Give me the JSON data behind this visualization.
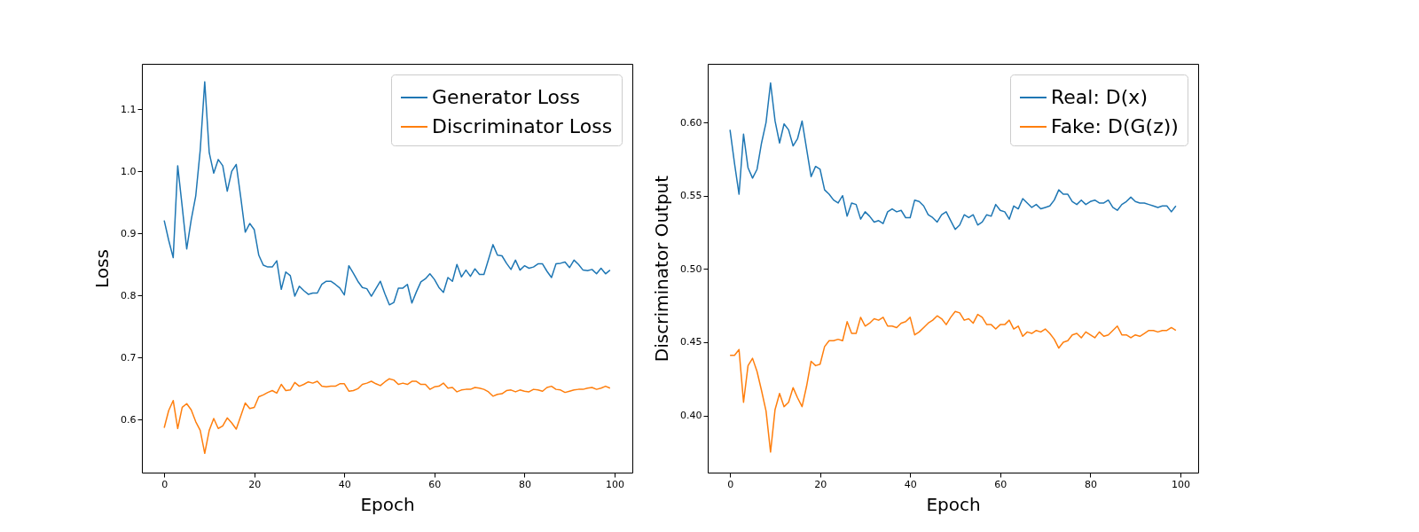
{
  "chart_data": [
    {
      "type": "line",
      "xlabel": "Epoch",
      "ylabel": "Loss",
      "legend": "top right",
      "grid": false,
      "marker": "none",
      "line_style": "solid",
      "xlim": [
        -4.95,
        103.95
      ],
      "xticks": [
        0,
        20,
        40,
        60,
        80,
        100
      ],
      "ylim": [
        0.515,
        1.173
      ],
      "yticks": [
        {
          "value": 0.6,
          "label": "0.6"
        },
        {
          "value": 0.7,
          "label": "0.7"
        },
        {
          "value": 0.8,
          "label": "0.8"
        },
        {
          "value": 0.9,
          "label": "0.9"
        },
        {
          "value": 1.0,
          "label": "1.0"
        },
        {
          "value": 1.1,
          "label": "1.1"
        }
      ],
      "x": [
        0,
        1,
        2,
        3,
        4,
        5,
        6,
        7,
        8,
        9,
        10,
        11,
        12,
        13,
        14,
        15,
        16,
        17,
        18,
        19,
        20,
        21,
        22,
        23,
        24,
        25,
        26,
        27,
        28,
        29,
        30,
        31,
        32,
        33,
        34,
        35,
        36,
        37,
        38,
        39,
        40,
        41,
        42,
        43,
        44,
        45,
        46,
        47,
        48,
        49,
        50,
        51,
        52,
        53,
        54,
        55,
        56,
        57,
        58,
        59,
        60,
        61,
        62,
        63,
        64,
        65,
        66,
        67,
        68,
        69,
        70,
        71,
        72,
        73,
        74,
        75,
        76,
        77,
        78,
        79,
        80,
        81,
        82,
        83,
        84,
        85,
        86,
        87,
        88,
        89,
        90,
        91,
        92,
        93,
        94,
        95,
        96,
        97,
        98,
        99
      ],
      "series": [
        {
          "name": "Generator Loss",
          "color": "#1f77b4",
          "values": [
            0.921,
            0.889,
            0.861,
            1.009,
            0.943,
            0.875,
            0.922,
            0.96,
            1.034,
            1.144,
            1.03,
            0.997,
            1.019,
            1.009,
            0.968,
            1.0,
            1.011,
            0.958,
            0.902,
            0.916,
            0.906,
            0.865,
            0.849,
            0.846,
            0.846,
            0.856,
            0.81,
            0.838,
            0.832,
            0.799,
            0.815,
            0.808,
            0.802,
            0.804,
            0.804,
            0.818,
            0.823,
            0.823,
            0.818,
            0.812,
            0.801,
            0.848,
            0.836,
            0.823,
            0.813,
            0.811,
            0.799,
            0.811,
            0.823,
            0.803,
            0.785,
            0.789,
            0.812,
            0.812,
            0.818,
            0.788,
            0.806,
            0.822,
            0.827,
            0.835,
            0.826,
            0.813,
            0.805,
            0.829,
            0.823,
            0.85,
            0.83,
            0.841,
            0.831,
            0.843,
            0.834,
            0.834,
            0.858,
            0.882,
            0.865,
            0.864,
            0.852,
            0.842,
            0.857,
            0.841,
            0.848,
            0.844,
            0.846,
            0.851,
            0.851,
            0.839,
            0.829,
            0.851,
            0.852,
            0.854,
            0.845,
            0.857,
            0.85,
            0.841,
            0.84,
            0.842,
            0.835,
            0.844,
            0.835,
            0.841
          ]
        },
        {
          "name": "Discriminator Loss",
          "color": "#ff7f0e",
          "values": [
            0.587,
            0.615,
            0.631,
            0.586,
            0.62,
            0.626,
            0.616,
            0.597,
            0.583,
            0.546,
            0.583,
            0.602,
            0.586,
            0.59,
            0.603,
            0.595,
            0.585,
            0.606,
            0.627,
            0.618,
            0.62,
            0.637,
            0.64,
            0.644,
            0.647,
            0.643,
            0.657,
            0.647,
            0.648,
            0.66,
            0.654,
            0.657,
            0.661,
            0.659,
            0.662,
            0.654,
            0.653,
            0.654,
            0.654,
            0.658,
            0.658,
            0.646,
            0.647,
            0.65,
            0.657,
            0.659,
            0.662,
            0.658,
            0.655,
            0.661,
            0.666,
            0.664,
            0.657,
            0.659,
            0.657,
            0.662,
            0.662,
            0.657,
            0.657,
            0.649,
            0.653,
            0.654,
            0.659,
            0.651,
            0.652,
            0.645,
            0.648,
            0.649,
            0.649,
            0.652,
            0.651,
            0.649,
            0.645,
            0.638,
            0.641,
            0.642,
            0.647,
            0.648,
            0.645,
            0.648,
            0.646,
            0.645,
            0.649,
            0.648,
            0.646,
            0.652,
            0.654,
            0.649,
            0.648,
            0.644,
            0.646,
            0.648,
            0.649,
            0.649,
            0.651,
            0.652,
            0.649,
            0.651,
            0.654,
            0.651
          ]
        }
      ]
    },
    {
      "type": "line",
      "xlabel": "Epoch",
      "ylabel": "Discriminator Output",
      "legend": "top right",
      "grid": false,
      "marker": "none",
      "line_style": "solid",
      "xlim": [
        -4.95,
        103.95
      ],
      "xticks": [
        0,
        20,
        40,
        60,
        80,
        100
      ],
      "ylim": [
        0.361,
        0.64
      ],
      "yticks": [
        {
          "value": 0.4,
          "label": "0.40"
        },
        {
          "value": 0.45,
          "label": "0.45"
        },
        {
          "value": 0.5,
          "label": "0.50"
        },
        {
          "value": 0.55,
          "label": "0.55"
        },
        {
          "value": 0.6,
          "label": "0.60"
        }
      ],
      "x": [
        0,
        1,
        2,
        3,
        4,
        5,
        6,
        7,
        8,
        9,
        10,
        11,
        12,
        13,
        14,
        15,
        16,
        17,
        18,
        19,
        20,
        21,
        22,
        23,
        24,
        25,
        26,
        27,
        28,
        29,
        30,
        31,
        32,
        33,
        34,
        35,
        36,
        37,
        38,
        39,
        40,
        41,
        42,
        43,
        44,
        45,
        46,
        47,
        48,
        49,
        50,
        51,
        52,
        53,
        54,
        55,
        56,
        57,
        58,
        59,
        60,
        61,
        62,
        63,
        64,
        65,
        66,
        67,
        68,
        69,
        70,
        71,
        72,
        73,
        74,
        75,
        76,
        77,
        78,
        79,
        80,
        81,
        82,
        83,
        84,
        85,
        86,
        87,
        88,
        89,
        90,
        91,
        92,
        93,
        94,
        95,
        96,
        97,
        98,
        99
      ],
      "series": [
        {
          "name": "Real: D(x)",
          "color": "#1f77b4",
          "values": [
            0.595,
            0.572,
            0.551,
            0.592,
            0.569,
            0.562,
            0.568,
            0.586,
            0.6,
            0.627,
            0.601,
            0.586,
            0.599,
            0.595,
            0.584,
            0.589,
            0.601,
            0.582,
            0.563,
            0.57,
            0.568,
            0.554,
            0.551,
            0.547,
            0.545,
            0.55,
            0.536,
            0.545,
            0.544,
            0.534,
            0.539,
            0.536,
            0.532,
            0.533,
            0.531,
            0.539,
            0.541,
            0.539,
            0.54,
            0.535,
            0.535,
            0.547,
            0.546,
            0.543,
            0.537,
            0.535,
            0.532,
            0.537,
            0.539,
            0.533,
            0.527,
            0.53,
            0.537,
            0.535,
            0.537,
            0.53,
            0.532,
            0.537,
            0.536,
            0.544,
            0.54,
            0.539,
            0.534,
            0.543,
            0.541,
            0.548,
            0.545,
            0.542,
            0.544,
            0.541,
            0.542,
            0.543,
            0.547,
            0.554,
            0.551,
            0.551,
            0.546,
            0.544,
            0.547,
            0.544,
            0.546,
            0.547,
            0.545,
            0.545,
            0.547,
            0.542,
            0.54,
            0.544,
            0.546,
            0.549,
            0.546,
            0.545,
            0.545,
            0.544,
            0.543,
            0.542,
            0.543,
            0.543,
            0.539,
            0.543
          ]
        },
        {
          "name": "Fake: D(G(z))",
          "color": "#ff7f0e",
          "values": [
            0.441,
            0.441,
            0.445,
            0.409,
            0.434,
            0.439,
            0.43,
            0.417,
            0.403,
            0.375,
            0.404,
            0.415,
            0.406,
            0.409,
            0.419,
            0.412,
            0.406,
            0.42,
            0.437,
            0.434,
            0.435,
            0.447,
            0.451,
            0.451,
            0.452,
            0.451,
            0.464,
            0.456,
            0.456,
            0.467,
            0.461,
            0.463,
            0.466,
            0.465,
            0.467,
            0.461,
            0.461,
            0.46,
            0.463,
            0.464,
            0.467,
            0.455,
            0.457,
            0.46,
            0.463,
            0.465,
            0.468,
            0.466,
            0.462,
            0.467,
            0.471,
            0.47,
            0.465,
            0.466,
            0.463,
            0.469,
            0.467,
            0.462,
            0.462,
            0.459,
            0.462,
            0.462,
            0.465,
            0.459,
            0.461,
            0.454,
            0.457,
            0.456,
            0.458,
            0.457,
            0.459,
            0.456,
            0.452,
            0.446,
            0.45,
            0.451,
            0.455,
            0.456,
            0.453,
            0.457,
            0.455,
            0.453,
            0.457,
            0.454,
            0.455,
            0.458,
            0.461,
            0.455,
            0.455,
            0.453,
            0.455,
            0.454,
            0.456,
            0.458,
            0.458,
            0.457,
            0.458,
            0.458,
            0.46,
            0.458
          ]
        }
      ]
    }
  ]
}
